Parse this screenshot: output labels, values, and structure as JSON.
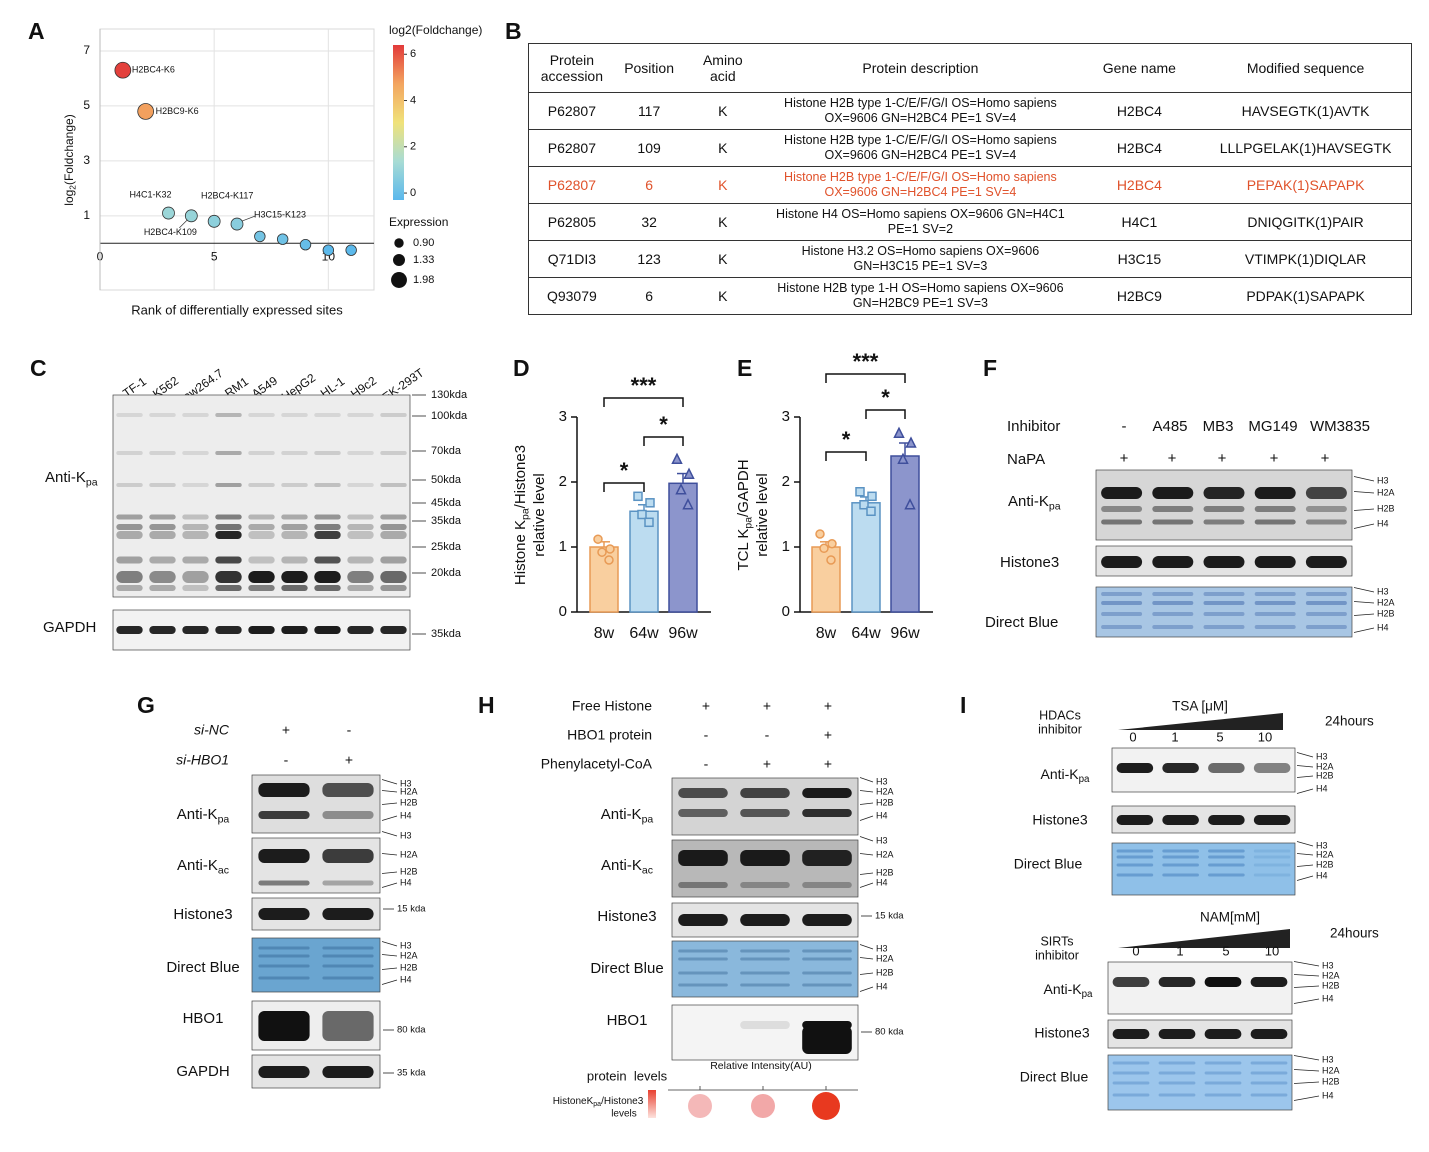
{
  "panel_labels": [
    "A",
    "B",
    "C",
    "D",
    "E",
    "F",
    "G",
    "H",
    "I"
  ],
  "chart_data": [
    {
      "type": "scatter",
      "y_label": [
        "log",
        "2",
        "(Foldchange)"
      ],
      "x_label": "Rank of differentially expressed sites",
      "x": [
        1,
        2,
        3,
        4,
        5,
        6,
        7,
        8,
        9,
        10,
        11
      ],
      "values": [
        6.3,
        4.8,
        1.1,
        1.0,
        0.8,
        0.7,
        0.25,
        0.15,
        -0.05,
        -0.25,
        -0.25
      ],
      "sizes": [
        1.98,
        1.98,
        1.33,
        1.33,
        1.33,
        1.33,
        1.1,
        1.1,
        1.1,
        1.1,
        1.1
      ],
      "point_labels": [
        "H2BC4-K6",
        "H2BC9-K6",
        "H4C1-K32",
        "H2BC4-K109",
        "H2BC4-K117",
        "H3C15-K123",
        null,
        null,
        null,
        null,
        null
      ],
      "xlim": [
        0,
        12
      ],
      "ylim": [
        -1.7,
        7.8
      ],
      "xticks": [
        0,
        5,
        10
      ],
      "yticks": [
        1,
        3,
        5,
        7
      ],
      "grid": true,
      "colorbar": {
        "title": "log2(Foldchange)",
        "lim": [
          -0.3,
          6.4
        ],
        "ticks": [
          0,
          2,
          4,
          6
        ],
        "colors": [
          "#5ab8ec",
          "#a8dcd4",
          "#f0e27a",
          "#f3a560",
          "#e23a3a"
        ]
      },
      "size_legend": {
        "title": "Expression",
        "values": [
          {
            "value": 0.9,
            "label": "0.90"
          },
          1.33,
          1.98
        ]
      }
    },
    {
      "type": "bar",
      "y_label_1": [
        "Histone K",
        "pa",
        "/Histone3"
      ],
      "y_label_2": "relative level",
      "categories": [
        "8w",
        "64w",
        "96w"
      ],
      "values": [
        1.0,
        1.55,
        1.98
      ],
      "errors": [
        0.08,
        0.1,
        0.15
      ],
      "points": [
        [
          1.12,
          0.97,
          0.92,
          0.8
        ],
        [
          1.78,
          1.68,
          1.5,
          1.38
        ],
        [
          2.35,
          2.12,
          1.88,
          1.65
        ]
      ],
      "colors": [
        "#f9cf9f",
        "#bcdcf0",
        "#8c95cc"
      ],
      "edge_colors": [
        "#e89a55",
        "#5b93c3",
        "#3f4f9c"
      ],
      "markers": [
        "circle",
        "square",
        "triangle"
      ],
      "ylim": [
        0,
        3
      ],
      "yticks": [
        0,
        1,
        2,
        3
      ],
      "significance": [
        "*",
        "*",
        "***"
      ]
    },
    {
      "type": "bar",
      "y_label_1": [
        "TCL K",
        "pa",
        "/GAPDH"
      ],
      "y_label_2": "relative level",
      "categories": [
        "8w",
        "64w",
        "96w"
      ],
      "values": [
        1.0,
        1.68,
        2.4
      ],
      "errors": [
        0.08,
        0.09,
        0.2
      ],
      "points": [
        [
          1.2,
          1.05,
          0.98,
          0.8
        ],
        [
          1.85,
          1.78,
          1.65,
          1.55
        ],
        [
          2.75,
          2.6,
          2.35,
          1.65
        ]
      ],
      "colors": [
        "#f9cf9f",
        "#bcdcf0",
        "#8c95cc"
      ],
      "edge_colors": [
        "#e89a55",
        "#5b93c3",
        "#3f4f9c"
      ],
      "markers": [
        "circle",
        "square",
        "triangle"
      ],
      "ylim": [
        0,
        3
      ],
      "yticks": [
        0,
        1,
        2,
        3
      ],
      "significance": [
        "*",
        "*",
        "***"
      ]
    }
  ],
  "table": {
    "headers": [
      "Protein accession",
      "Position",
      "Amino acid",
      "Protein description",
      "Gene name",
      "Modified sequence"
    ],
    "rows": [
      [
        "P62807",
        117,
        "K",
        "Histone H2B type 1-C/E/F/G/I OS=Homo sapiens OX=9606 GN=H2BC4 PE=1 SV=4",
        "H2BC4",
        "HAVSEGTK(1)AVTK"
      ],
      [
        "P62807",
        109,
        "K",
        "Histone H2B type 1-C/E/F/G/I OS=Homo sapiens OX=9606 GN=H2BC4 PE=1 SV=4",
        "H2BC4",
        "LLLPGELAK(1)HAVSEGTK"
      ],
      [
        "P62807",
        6,
        "K",
        "Histone H2B type 1-C/E/F/G/I OS=Homo sapiens OX=9606 GN=H2BC4 PE=1 SV=4",
        "H2BC4",
        "PEPAK(1)SAPAPK"
      ],
      [
        "P62805",
        32,
        "K",
        "Histone H4 OS=Homo sapiens OX=9606 GN=H4C1 PE=1 SV=2",
        "H4C1",
        "DNIQGITK(1)PAIR"
      ],
      [
        "Q71DI3",
        123,
        "K",
        "Histone H3.2 OS=Homo sapiens OX=9606 GN=H3C15 PE=1 SV=3",
        "H3C15",
        "VTIMPK(1)DIQLAR"
      ],
      [
        "Q93079",
        6,
        "K",
        "Histone H2B type 1-H OS=Homo sapiens OX=9606 GN=H2BC9 PE=1 SV=3",
        "H2BC9",
        "PDPAK(1)SAPAPK"
      ]
    ],
    "highlight_row": 2,
    "highlight_color": "#e0522b"
  },
  "blot_c": {
    "lanes": [
      "TF-1",
      "K562",
      "Raw264.7",
      "RM1",
      "A549",
      "HepG2",
      "HL-1",
      "H9c2",
      "HEK-293T"
    ],
    "markers": [
      "130kda",
      "100kda",
      "70kda",
      "50kda",
      "45kda",
      "35kda",
      "25kda",
      "20kda"
    ],
    "gapdh_marker": "35kda",
    "rows": [
      [
        "Anti-K",
        "pa"
      ],
      "GAPDH"
    ]
  },
  "blot_f": {
    "inhibitor_label": "Inhibitor",
    "inhibitors": [
      "-",
      "A485",
      "MB3",
      "MG149",
      "WM3835"
    ],
    "treatment_label": "NaPA",
    "treatment": [
      "+",
      "+",
      "+",
      "+",
      "+"
    ],
    "rows": [
      [
        "Anti-K",
        "pa"
      ],
      "Histone3",
      "Direct Blue"
    ],
    "histone_bands": [
      "H3",
      "H2A",
      "H2B",
      "H4"
    ]
  },
  "blot_g": {
    "conditions": [
      {
        "label": "si-NC",
        "signs": [
          "+",
          "-"
        ]
      },
      {
        "label": "si-HBO1",
        "signs": [
          "-",
          "+"
        ]
      }
    ],
    "rows": [
      [
        "Anti-K",
        "pa"
      ],
      [
        "Anti-K",
        "ac"
      ],
      "Histone3",
      "Direct Blue",
      "HBO1",
      "GAPDH"
    ],
    "markers": [
      "15 kda",
      "80 kda",
      "35 kda"
    ],
    "histone_bands": [
      "H3",
      "H2A",
      "H2B",
      "H4"
    ]
  },
  "blot_h": {
    "conditions": [
      {
        "label": "Free Histone",
        "signs": [
          "+",
          "+",
          "+"
        ]
      },
      {
        "label": "HBO1 protein",
        "signs": [
          "-",
          "-",
          "+"
        ]
      },
      {
        "label": "Phenylacetyl-CoA",
        "signs": [
          "-",
          "+",
          "+"
        ]
      }
    ],
    "rows": [
      [
        "Anti-K",
        "pa"
      ],
      [
        "Anti-K",
        "ac"
      ],
      "Histone3",
      "Direct Blue",
      "HBO1"
    ],
    "markers": [
      "15 kda",
      "80 kda"
    ],
    "histone_bands": [
      "H3",
      "H2A",
      "H2B",
      "H4"
    ],
    "intensity_axis": "Relative Intensity(AU)",
    "intensity_title": "protein  levels",
    "intensity_label": [
      "HistoneK",
      "pa",
      "/Histone3"
    ],
    "intensity_label_2": "levels"
  },
  "blot_i": {
    "treatments": [
      {
        "class": "HDACs",
        "class_2": "inhibitor",
        "agent": "TSA [μM]",
        "time": "24hours",
        "doses": [
          0,
          1,
          5,
          10
        ],
        "rows": [
          [
            "Anti-K",
            "pa"
          ],
          "Histone3",
          "Direct Blue"
        ]
      },
      {
        "class": "SIRTs",
        "class_2": "inhibitor",
        "agent": "NAM[mM]",
        "time": "24hours",
        "doses": [
          0,
          1,
          5,
          10
        ],
        "rows": [
          [
            "Anti-K",
            "pa"
          ],
          "Histone3",
          "Direct Blue"
        ]
      }
    ],
    "histone_bands": [
      "H3",
      "H2A",
      "H2B",
      "H4"
    ]
  }
}
